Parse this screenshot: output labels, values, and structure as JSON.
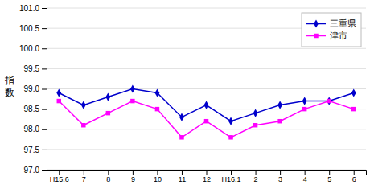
{
  "chart_data": {
    "type": "line",
    "categories": [
      "H15.6",
      "7",
      "8",
      "9",
      "10",
      "11",
      "12",
      "H16.1",
      "2",
      "3",
      "4",
      "5",
      "6"
    ],
    "series": [
      {
        "name": "三重県",
        "color": "#0000CC",
        "marker": "diamond",
        "values": [
          98.9,
          98.6,
          98.8,
          99.0,
          98.9,
          98.3,
          98.6,
          98.2,
          98.4,
          98.6,
          98.7,
          98.7,
          98.9
        ]
      },
      {
        "name": "津市",
        "color": "#FF00FF",
        "marker": "square",
        "values": [
          98.7,
          98.1,
          98.4,
          98.7,
          98.5,
          97.8,
          98.2,
          97.8,
          98.1,
          98.2,
          98.5,
          98.7,
          98.5
        ]
      }
    ],
    "ylabel": "指数",
    "ylim": [
      97.0,
      101.0
    ],
    "yticks": [
      {
        "value": 97.0,
        "label": "97.0"
      },
      97.5,
      {
        "value": 98.0,
        "label": "98.0"
      },
      98.5,
      {
        "value": 99.0,
        "label": "99.0"
      },
      99.5,
      {
        "value": 100.0,
        "label": "100.0"
      },
      100.5,
      {
        "value": 101.0,
        "label": "101.0"
      }
    ],
    "grid": true,
    "legend": "upper-right"
  }
}
